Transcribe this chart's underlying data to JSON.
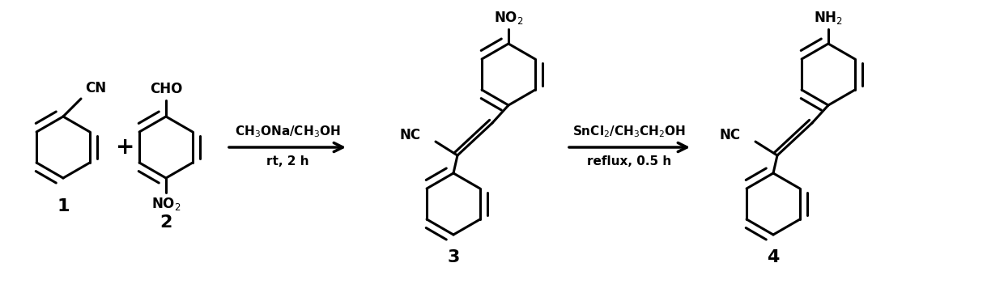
{
  "bg_color": "#ffffff",
  "line_color": "#000000",
  "line_width": 2.2,
  "fig_width": 12.4,
  "fig_height": 3.67,
  "dpi": 100,
  "arrow1_label_top": "CH$_3$ONa/CH$_3$OH",
  "arrow1_label_bottom": "rt, 2 h",
  "arrow2_label_top": "SnCl$_2$/CH$_3$CH$_2$OH",
  "arrow2_label_bottom": "reflux, 0.5 h",
  "font_size": 11,
  "font_size_label": 14
}
